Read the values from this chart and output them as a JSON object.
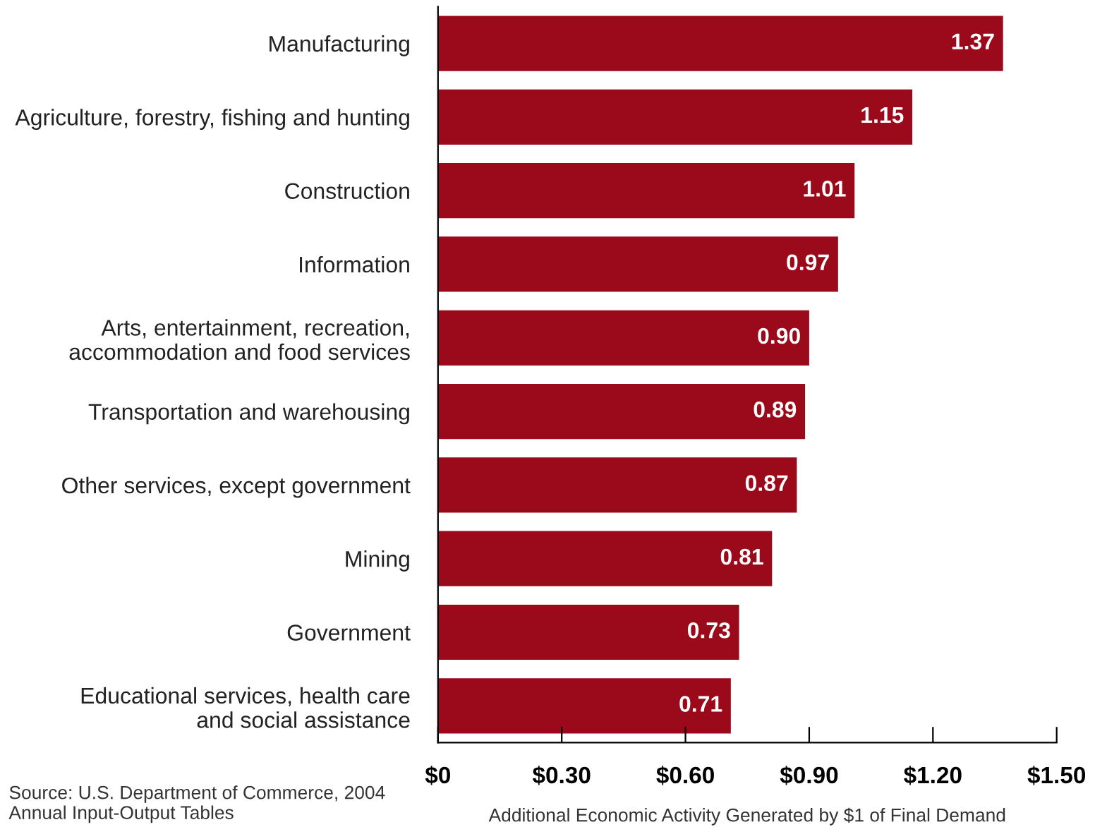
{
  "chart_data": {
    "type": "bar",
    "orientation": "horizontal",
    "xlabel": "Additional Economic Activity Generated by $1 of Final Demand",
    "categories": [
      "Manufacturing",
      "Agriculture, forestry, fishing and hunting",
      "Construction",
      "Information",
      "Arts, entertainment, recreation,\naccommodation and food services",
      "Transportation and warehousing",
      "Other services, except government",
      "Mining",
      "Government",
      "Educational services, health care\nand social assistance"
    ],
    "values": [
      1.37,
      1.15,
      1.01,
      0.97,
      0.9,
      0.89,
      0.87,
      0.81,
      0.73,
      0.71
    ],
    "value_labels": [
      "1.37",
      "1.15",
      "1.01",
      "0.97",
      "0.90",
      "0.89",
      "0.87",
      "0.81",
      "0.73",
      "0.71"
    ],
    "color": "#9b0a1a",
    "xlim": [
      0,
      1.5
    ],
    "xticks": [
      {
        "value": 0,
        "label": "$0"
      },
      {
        "value": 0.3,
        "label": "$0.30"
      },
      {
        "value": 0.6,
        "label": "$0.60"
      },
      {
        "value": 0.9,
        "label": "$0.90"
      },
      {
        "value": 1.2,
        "label": "$1.20"
      },
      {
        "value": 1.5,
        "label": "$1.50"
      }
    ],
    "grid": false,
    "legend": false,
    "annotations": [
      "Source: U.S. Department of Commerce, 2004\nAnnual Input-Output Tables"
    ]
  }
}
